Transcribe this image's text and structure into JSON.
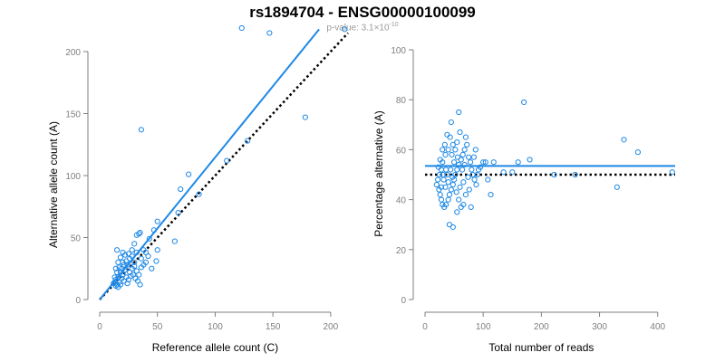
{
  "title": "rs1894704 - ENSG00000100099",
  "subtitle": {
    "prefix": "p-value: 3.1×10",
    "exponent": "-10"
  },
  "colors": {
    "points": "#1e88e5",
    "fit": "#1e88e5",
    "reference": "#000000",
    "axis": "#7f7f7f"
  },
  "chart_data": [
    {
      "type": "scatter",
      "xlabel": "Reference allele count (C)",
      "ylabel": "Alternative allele count (A)",
      "xlim": [
        0,
        215
      ],
      "ylim": [
        0,
        200
      ],
      "xticks": [
        "0",
        "50",
        "100",
        "150",
        "200"
      ],
      "yticks": [
        "0",
        "50",
        "100",
        "150",
        "200"
      ],
      "fit_line": {
        "x": [
          0,
          190
        ],
        "y": [
          0,
          218
        ]
      },
      "reference_line": {
        "x": [
          0,
          215
        ],
        "y": [
          0,
          215
        ]
      },
      "points": [
        [
          123,
          219
        ],
        [
          147,
          215
        ],
        [
          212,
          218
        ],
        [
          36,
          137
        ],
        [
          178,
          147
        ],
        [
          128,
          128
        ],
        [
          77,
          101
        ],
        [
          86,
          85
        ],
        [
          110,
          112
        ],
        [
          70,
          89
        ],
        [
          65,
          47
        ],
        [
          68,
          70
        ],
        [
          50,
          63
        ],
        [
          47,
          56
        ],
        [
          50,
          40
        ],
        [
          43,
          49
        ],
        [
          49,
          31
        ],
        [
          34,
          53
        ],
        [
          32,
          52
        ],
        [
          35,
          54
        ],
        [
          30,
          45
        ],
        [
          28,
          40
        ],
        [
          38,
          40
        ],
        [
          40,
          38
        ],
        [
          42,
          35
        ],
        [
          36,
          33
        ],
        [
          25,
          37
        ],
        [
          22,
          36
        ],
        [
          18,
          34
        ],
        [
          15,
          40
        ],
        [
          20,
          30
        ],
        [
          24,
          28
        ],
        [
          30,
          30
        ],
        [
          28,
          25
        ],
        [
          26,
          22
        ],
        [
          22,
          24
        ],
        [
          20,
          20
        ],
        [
          18,
          22
        ],
        [
          16,
          18
        ],
        [
          14,
          16
        ],
        [
          13,
          14
        ],
        [
          15,
          12
        ],
        [
          17,
          14
        ],
        [
          19,
          17
        ],
        [
          21,
          15
        ],
        [
          23,
          18
        ],
        [
          25,
          16
        ],
        [
          27,
          19
        ],
        [
          29,
          20
        ],
        [
          31,
          17
        ],
        [
          33,
          15
        ],
        [
          35,
          12
        ],
        [
          24,
          13
        ],
        [
          18,
          12
        ],
        [
          16,
          10
        ],
        [
          14,
          11
        ],
        [
          12,
          13
        ],
        [
          13,
          18
        ],
        [
          15,
          22
        ],
        [
          17,
          26
        ],
        [
          14,
          25
        ],
        [
          16,
          30
        ],
        [
          19,
          25
        ],
        [
          21,
          28
        ],
        [
          23,
          31
        ],
        [
          26,
          33
        ],
        [
          28,
          35
        ],
        [
          30,
          27
        ],
        [
          32,
          23
        ],
        [
          34,
          20
        ],
        [
          36,
          26
        ],
        [
          38,
          28
        ],
        [
          40,
          30
        ],
        [
          45,
          25
        ],
        [
          32,
          38
        ],
        [
          20,
          38
        ]
      ]
    },
    {
      "type": "scatter",
      "xlabel": "Total number of reads",
      "ylabel": "Percentage alternative (A)",
      "xlim": [
        0,
        430
      ],
      "ylim": [
        0,
        100
      ],
      "xticks": [
        "0",
        "100",
        "200",
        "300",
        "400"
      ],
      "yticks": [
        "0",
        "20",
        "40",
        "60",
        "80",
        "100"
      ],
      "fit_line": {
        "x": [
          0,
          430
        ],
        "y": [
          53.5,
          53.5
        ]
      },
      "reference_line": {
        "x": [
          0,
          430
        ],
        "y": [
          50,
          50
        ]
      },
      "points": [
        [
          170,
          79
        ],
        [
          342,
          64
        ],
        [
          366,
          59
        ],
        [
          425,
          51
        ],
        [
          330,
          45
        ],
        [
          113,
          42
        ],
        [
          258,
          50
        ],
        [
          222,
          50
        ],
        [
          180,
          56
        ],
        [
          160,
          55
        ],
        [
          150,
          51
        ],
        [
          135,
          51
        ],
        [
          118,
          55
        ],
        [
          104,
          55
        ],
        [
          100,
          55
        ],
        [
          58,
          75
        ],
        [
          45,
          71
        ],
        [
          38,
          66
        ],
        [
          43,
          65
        ],
        [
          60,
          67
        ],
        [
          70,
          65
        ],
        [
          55,
          63
        ],
        [
          48,
          62
        ],
        [
          40,
          60
        ],
        [
          35,
          58
        ],
        [
          30,
          55
        ],
        [
          28,
          52
        ],
        [
          25,
          50
        ],
        [
          22,
          48
        ],
        [
          20,
          46
        ],
        [
          24,
          44
        ],
        [
          26,
          42
        ],
        [
          28,
          40
        ],
        [
          30,
          38
        ],
        [
          33,
          37
        ],
        [
          36,
          38
        ],
        [
          40,
          40
        ],
        [
          42,
          42
        ],
        [
          45,
          44
        ],
        [
          48,
          46
        ],
        [
          50,
          48
        ],
        [
          52,
          50
        ],
        [
          55,
          52
        ],
        [
          58,
          54
        ],
        [
          62,
          56
        ],
        [
          65,
          58
        ],
        [
          68,
          60
        ],
        [
          72,
          62
        ],
        [
          75,
          57
        ],
        [
          78,
          55
        ],
        [
          80,
          52
        ],
        [
          82,
          50
        ],
        [
          85,
          48
        ],
        [
          88,
          46
        ],
        [
          90,
          50
        ],
        [
          92,
          52
        ],
        [
          95,
          53
        ],
        [
          42,
          30
        ],
        [
          48,
          29
        ],
        [
          55,
          35
        ],
        [
          62,
          37
        ],
        [
          35,
          45
        ],
        [
          32,
          48
        ],
        [
          38,
          50
        ],
        [
          44,
          52
        ],
        [
          50,
          55
        ],
        [
          56,
          57
        ],
        [
          60,
          45
        ],
        [
          66,
          47
        ],
        [
          70,
          42
        ],
        [
          76,
          44
        ],
        [
          30,
          60
        ],
        [
          26,
          56
        ],
        [
          34,
          62
        ],
        [
          46,
          58
        ],
        [
          52,
          60
        ],
        [
          64,
          52
        ],
        [
          74,
          49
        ],
        [
          84,
          57
        ],
        [
          28,
          45
        ],
        [
          36,
          52
        ],
        [
          40,
          47
        ],
        [
          54,
          43
        ],
        [
          58,
          40
        ],
        [
          66,
          38
        ],
        [
          79,
          37
        ],
        [
          23,
          53
        ],
        [
          31,
          50
        ],
        [
          47,
          49
        ],
        [
          68,
          54
        ],
        [
          87,
          60
        ],
        [
          108,
          48
        ]
      ]
    }
  ]
}
